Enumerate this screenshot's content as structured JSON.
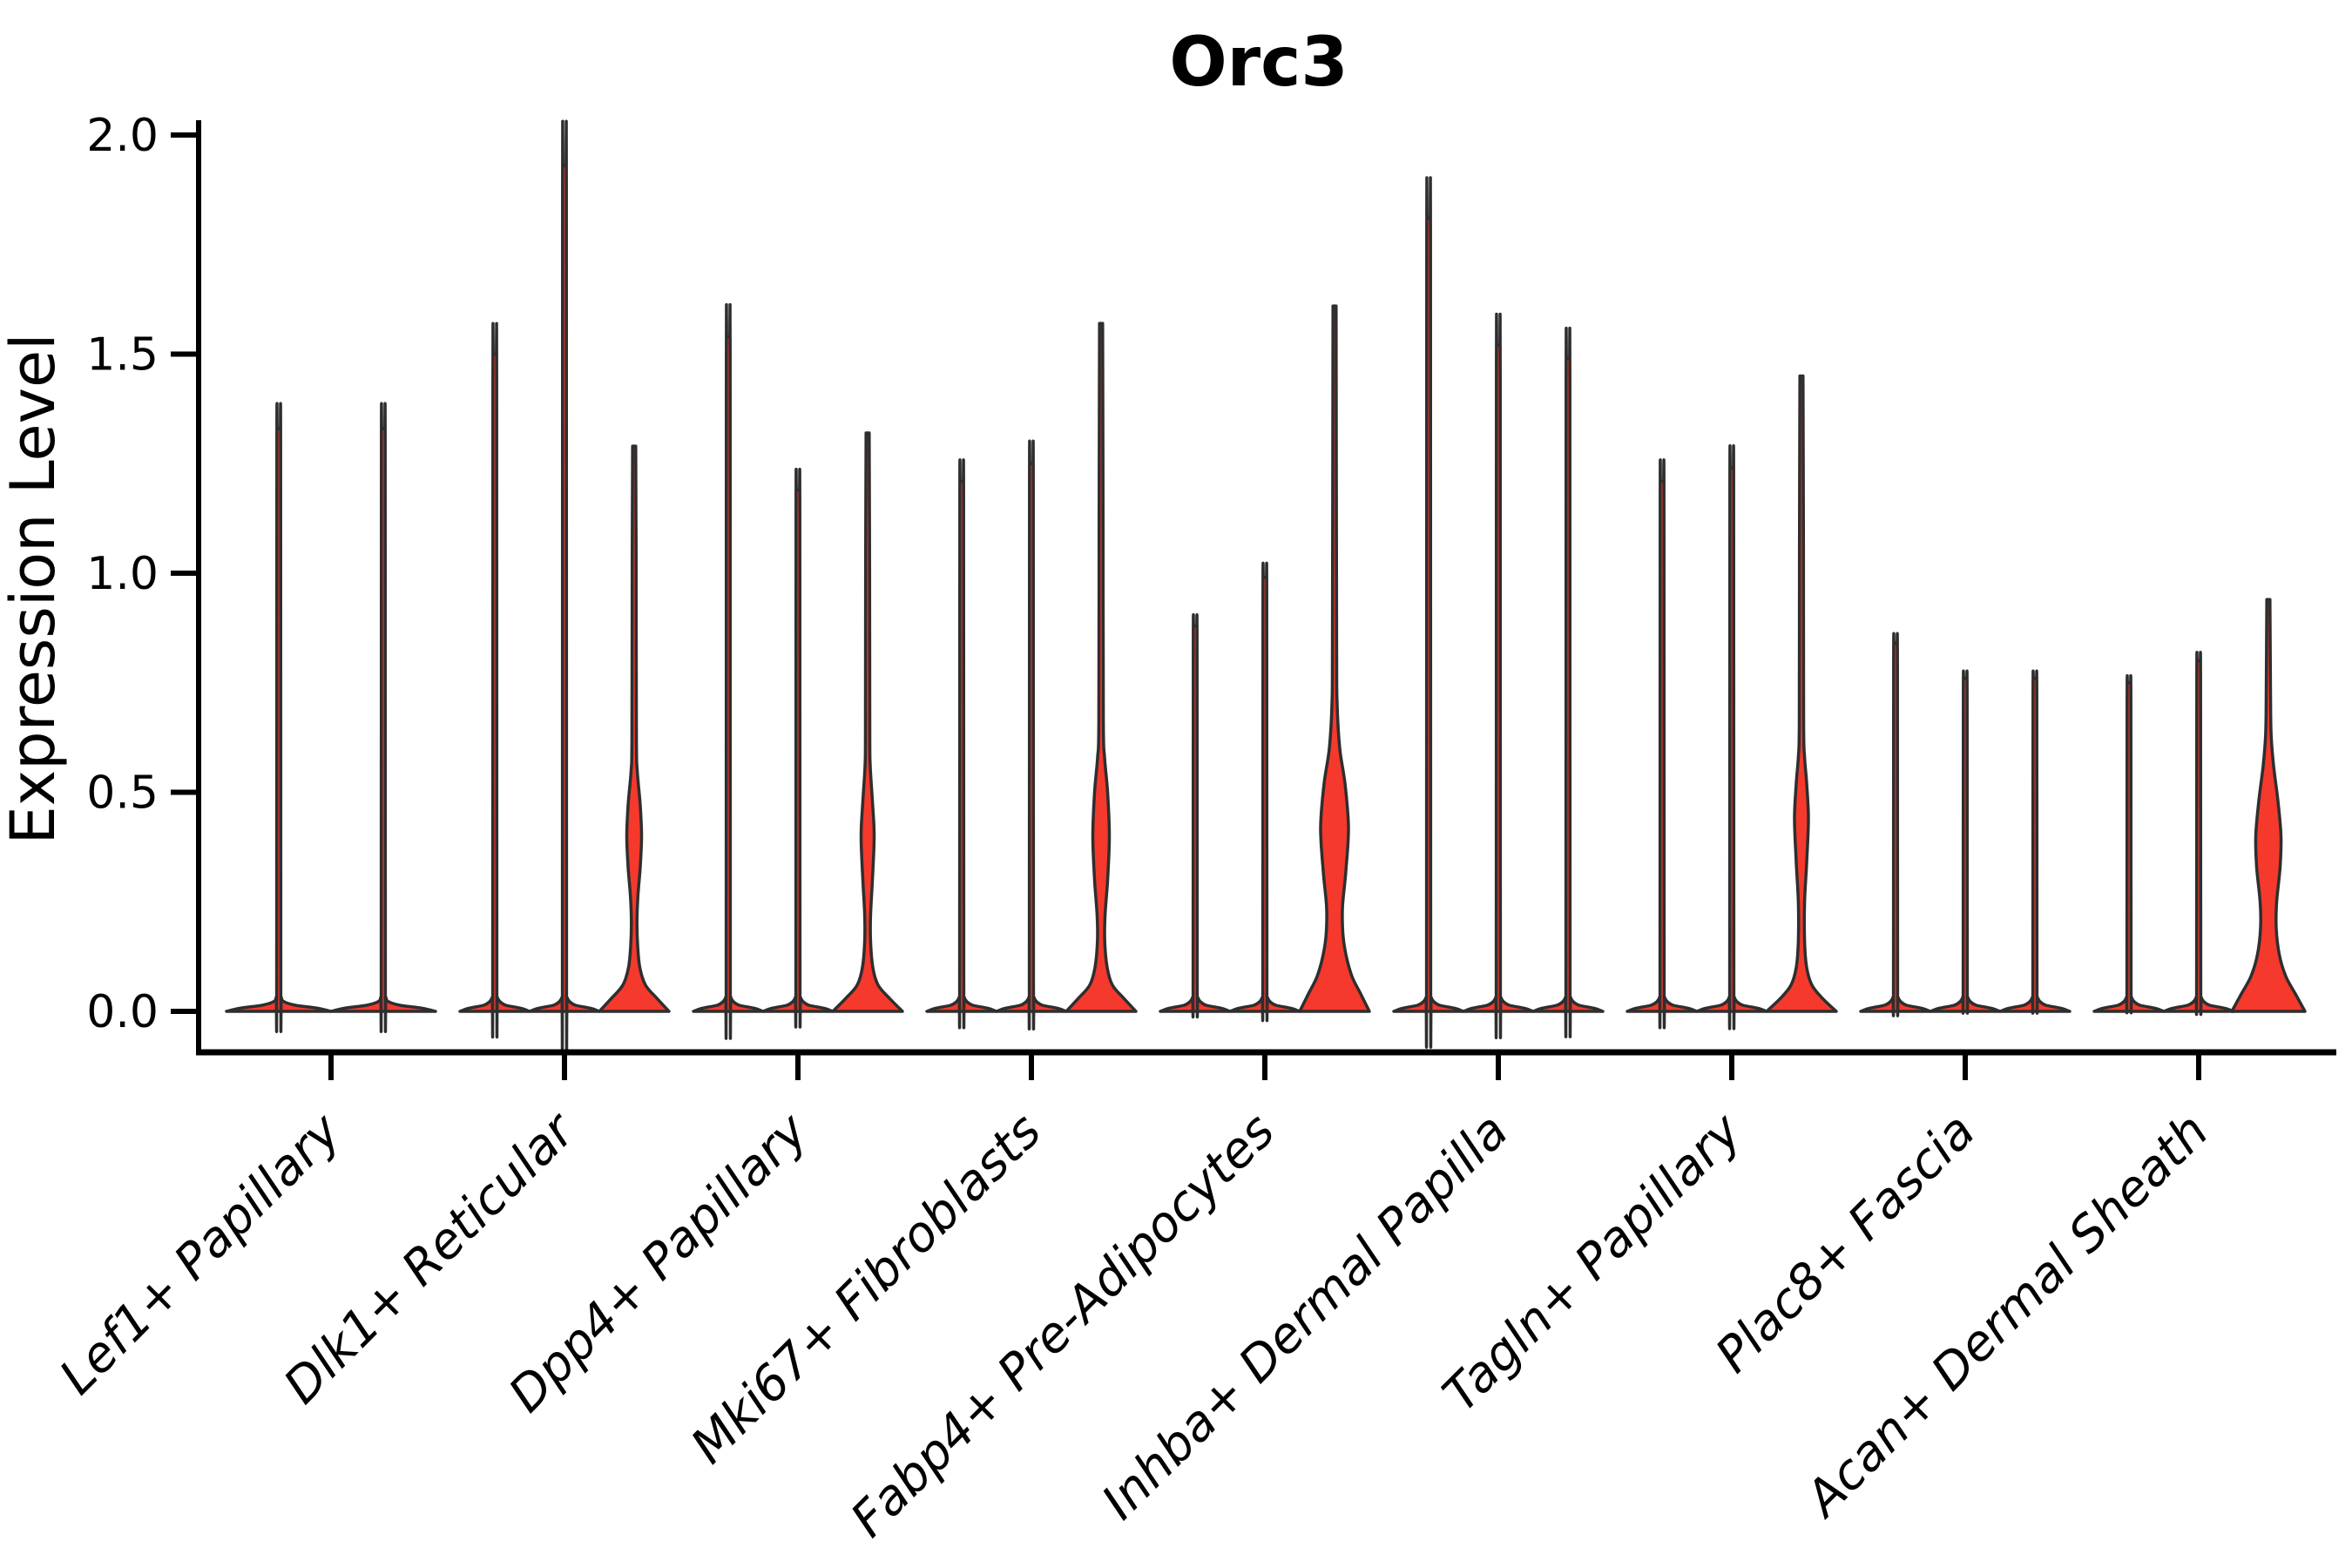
{
  "figure": {
    "background": "#ffffff"
  },
  "chart_data": {
    "type": "violin",
    "title": "Orc3",
    "ylabel": "Expression Level",
    "xlabel": "",
    "grid": false,
    "legend": null,
    "ylim": [
      0,
      2.05
    ],
    "ytick_labels": [
      "0.0",
      "0.5",
      "1.0",
      "1.5",
      "2.0"
    ],
    "ytick_values": [
      0,
      0.5,
      1.0,
      1.5,
      2.0
    ],
    "fill_color": "#f5392c",
    "edge_color": "#2e2e2e",
    "axis_color": "#000000",
    "categories": [
      "Lef1+ Papillary",
      "Dlk1+ Reticular",
      "Dpp4+ Papillary",
      "Mki67+ Fibroblasts",
      "Fabp4+ Pre-Adipocytes",
      "Inhba+ Dermal Papilla",
      "Tagln+ Papillary",
      "Plac8+ Fascia",
      "Acan+ Dermal Sheath"
    ],
    "groups": [
      {
        "category": "Lef1+ Papillary",
        "violins": [
          {
            "max": 1.33,
            "body": "spike"
          },
          {
            "max": 1.33,
            "body": "spike"
          }
        ]
      },
      {
        "category": "Dlk1+ Reticular",
        "violins": [
          {
            "max": 1.5,
            "body": "spike"
          },
          {
            "max": 1.93,
            "body": "spike"
          },
          {
            "max": 1.29,
            "body": "filled",
            "profile": [
              [
                0,
                40
              ],
              [
                0.03,
                26
              ],
              [
                0.06,
                13
              ],
              [
                0.1,
                6.5
              ],
              [
                0.15,
                4
              ],
              [
                0.2,
                3.2
              ],
              [
                0.26,
                4.2
              ],
              [
                0.33,
                7
              ],
              [
                0.4,
                8.5
              ],
              [
                0.47,
                7
              ],
              [
                0.55,
                3.5
              ],
              [
                0.62,
                2.6
              ],
              [
                1.0,
                2.3
              ],
              [
                1.29,
                1.8
              ]
            ]
          }
        ]
      },
      {
        "category": "Dpp4+ Papillary",
        "violins": [
          {
            "max": 1.54,
            "body": "spike"
          },
          {
            "max": 1.19,
            "body": "spike"
          },
          {
            "max": 1.32,
            "body": "filled",
            "profile": [
              [
                0,
                40
              ],
              [
                0.03,
                25
              ],
              [
                0.06,
                12
              ],
              [
                0.1,
                6
              ],
              [
                0.16,
                3.4
              ],
              [
                0.22,
                3.4
              ],
              [
                0.3,
                5.5
              ],
              [
                0.4,
                7.5
              ],
              [
                0.48,
                5.5
              ],
              [
                0.56,
                3
              ],
              [
                0.64,
                2.5
              ],
              [
                1.0,
                2.3
              ],
              [
                1.32,
                1.8
              ]
            ]
          }
        ]
      },
      {
        "category": "Mki67+ Fibroblasts",
        "violins": [
          {
            "max": 1.21,
            "body": "spike"
          },
          {
            "max": 1.25,
            "body": "spike"
          },
          {
            "max": 1.57,
            "body": "filled",
            "profile": [
              [
                0,
                40
              ],
              [
                0.03,
                26
              ],
              [
                0.06,
                13
              ],
              [
                0.1,
                7
              ],
              [
                0.16,
                4.2
              ],
              [
                0.22,
                4.6
              ],
              [
                0.3,
                7.5
              ],
              [
                0.4,
                9.5
              ],
              [
                0.5,
                7.5
              ],
              [
                0.58,
                4
              ],
              [
                0.66,
                2.6
              ],
              [
                1.1,
                2.3
              ],
              [
                1.57,
                1.8
              ]
            ]
          }
        ]
      },
      {
        "category": "Fabp4+ Pre-Adipocytes",
        "violins": [
          {
            "max": 0.88,
            "body": "spike"
          },
          {
            "max": 0.99,
            "body": "spike"
          },
          {
            "max": 1.61,
            "body": "filled",
            "profile": [
              [
                0,
                40
              ],
              [
                0.04,
                30
              ],
              [
                0.08,
                20
              ],
              [
                0.13,
                13
              ],
              [
                0.18,
                9.5
              ],
              [
                0.24,
                9.2
              ],
              [
                0.32,
                13
              ],
              [
                0.42,
                16
              ],
              [
                0.52,
                12
              ],
              [
                0.6,
                6
              ],
              [
                0.7,
                3
              ],
              [
                0.85,
                2.4
              ],
              [
                1.61,
                1.8
              ]
            ]
          }
        ]
      },
      {
        "category": "Inhba+ Dermal Papilla",
        "violins": [
          {
            "max": 1.81,
            "body": "spike"
          },
          {
            "max": 1.52,
            "body": "spike"
          },
          {
            "max": 1.49,
            "body": "spike"
          }
        ]
      },
      {
        "category": "Tagln+ Papillary",
        "violins": [
          {
            "max": 1.21,
            "body": "spike"
          },
          {
            "max": 1.24,
            "body": "spike"
          },
          {
            "max": 1.45,
            "body": "filled",
            "profile": [
              [
                0,
                40
              ],
              [
                0.03,
                24
              ],
              [
                0.06,
                12
              ],
              [
                0.1,
                6
              ],
              [
                0.16,
                3.6
              ],
              [
                0.25,
                3.6
              ],
              [
                0.34,
                6
              ],
              [
                0.44,
                8
              ],
              [
                0.52,
                6
              ],
              [
                0.58,
                3.6
              ],
              [
                0.66,
                2.5
              ],
              [
                1.05,
                2.3
              ],
              [
                1.45,
                1.8
              ]
            ]
          }
        ]
      },
      {
        "category": "Plac8+ Fascia",
        "violins": [
          {
            "max": 0.84,
            "body": "spike"
          },
          {
            "max": 0.76,
            "body": "spike"
          },
          {
            "max": 0.76,
            "body": "spike"
          }
        ]
      },
      {
        "category": "Acan+ Dermal Sheath",
        "violins": [
          {
            "max": 0.75,
            "body": "spike"
          },
          {
            "max": 0.8,
            "body": "spike"
          },
          {
            "max": 0.94,
            "body": "filled",
            "profile": [
              [
                0,
                42
              ],
              [
                0.04,
                31
              ],
              [
                0.08,
                20
              ],
              [
                0.13,
                12.5
              ],
              [
                0.19,
                9
              ],
              [
                0.25,
                9.5
              ],
              [
                0.33,
                13.5
              ],
              [
                0.4,
                14.5
              ],
              [
                0.48,
                11
              ],
              [
                0.56,
                6
              ],
              [
                0.63,
                3.2
              ],
              [
                0.72,
                2.5
              ],
              [
                0.94,
                1.8
              ]
            ]
          }
        ]
      }
    ]
  }
}
